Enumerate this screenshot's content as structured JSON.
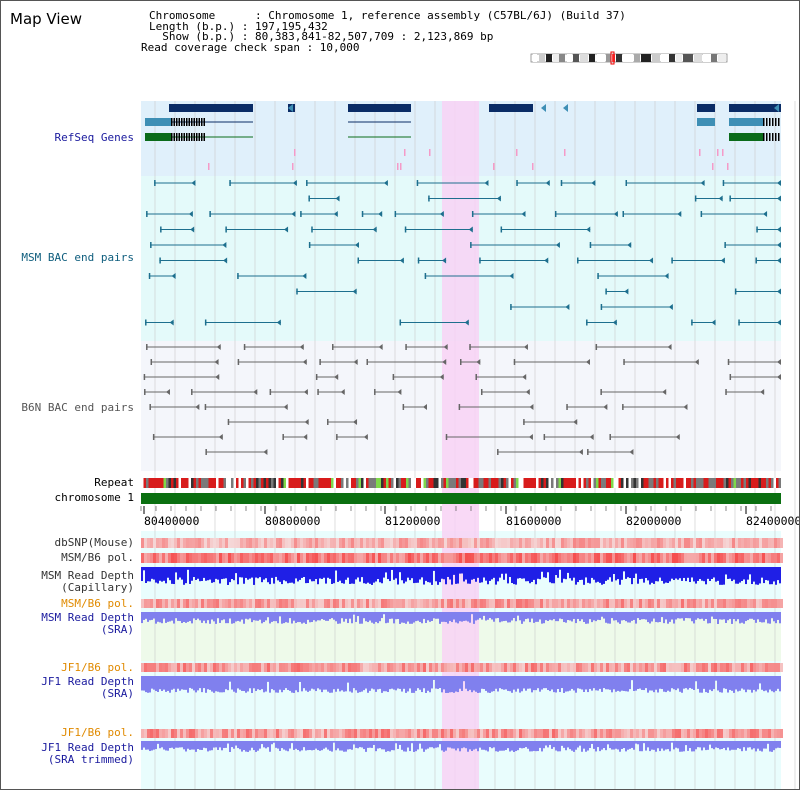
{
  "page": {
    "title": "Map View"
  },
  "info": {
    "chromosome_line": "Chromosome      : Chromosome 1, reference assembly (C57BL/6J) (Build 37)",
    "length_line": "Length (b.p.) : 197,195,432",
    "show_line": "  Show (b.p.) : 80,383,841-82,507,709 : 2,123,869 bp",
    "coverage_line": "Read coverage check span : 10,000"
  },
  "tracks": {
    "refseq": "RefSeq Genes",
    "msm_bac": "MSM BAC end pairs",
    "b6n_bac": "B6N BAC end pairs",
    "repeat": "Repeat",
    "chromosome": "chromosome 1",
    "dbsnp": "dbSNP(Mouse)",
    "msm_b6_pol": "MSM/B6 pol.",
    "msm_depth_cap": "MSM Read Depth\n(Capillary)",
    "msm_b6_pol_sra": "MSM/B6 pol.",
    "msm_depth_sra": "MSM Read Depth\n(SRA)",
    "jf1_b6_pol": "JF1/B6 pol.",
    "jf1_depth_sra": "JF1 Read Depth\n(SRA)",
    "jf1_b6_pol_trim": "JF1/B6 pol.",
    "jf1_depth_trim": "JF1 Read Depth\n(SRA trimmed)"
  },
  "axis": {
    "ticks": [
      "80400000",
      "80800000",
      "81200000",
      "81600000",
      "82000000",
      "82400000"
    ]
  },
  "colors": {
    "refseq_bg": "#e0f0fb",
    "bac_bg": "#e4fafa",
    "highlight": "#f8d2f4",
    "gene_dark": "#0a2c66",
    "gene_teal": "#3e8fb5",
    "gene_green": "#0a6b1a",
    "chromosome_bar": "#0a6f10",
    "depth_blue": "#1f1fe6",
    "depth_lilac": "#8080ee"
  }
}
